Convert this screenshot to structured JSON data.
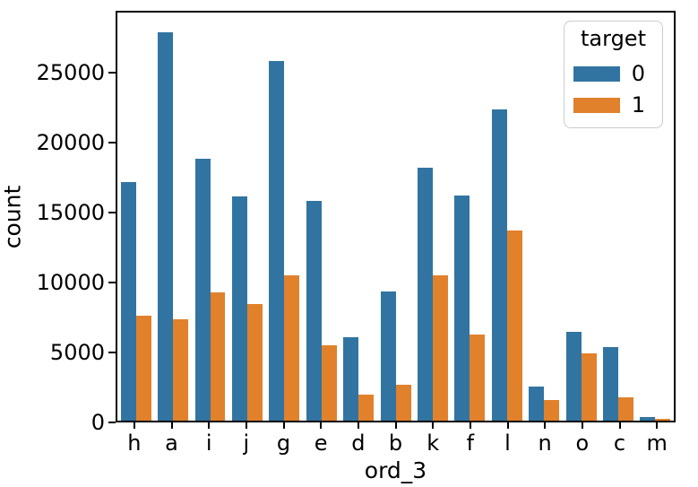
{
  "figure": {
    "background_color": "#ffffff",
    "text_color": "#000000",
    "spine_color": "#000000",
    "ylabel": "count",
    "xlabel": "ord_3",
    "ytick_labels": [
      "0",
      "5000",
      "10000",
      "15000",
      "20000",
      "25000"
    ]
  },
  "chart_data": {
    "type": "bar",
    "title": "",
    "xlabel": "ord_3",
    "ylabel": "count",
    "ylim": [
      0,
      29400
    ],
    "yticks": [
      0,
      5000,
      10000,
      15000,
      20000,
      25000
    ],
    "grid": false,
    "legend_title": "target",
    "legend_position": "upper right",
    "categories": [
      "h",
      "a",
      "i",
      "j",
      "g",
      "e",
      "d",
      "b",
      "k",
      "f",
      "l",
      "n",
      "o",
      "c",
      "m"
    ],
    "series": [
      {
        "name": "0",
        "color": "#3274a1",
        "values": [
          17200,
          28000,
          18850,
          16150,
          25900,
          15800,
          6000,
          9300,
          18200,
          16200,
          22400,
          2450,
          6400,
          5300,
          250
        ]
      },
      {
        "name": "1",
        "color": "#e1812c",
        "values": [
          7550,
          7300,
          9250,
          8400,
          10500,
          5450,
          1850,
          2600,
          10450,
          6200,
          13700,
          1500,
          4850,
          1650,
          120
        ]
      }
    ]
  }
}
